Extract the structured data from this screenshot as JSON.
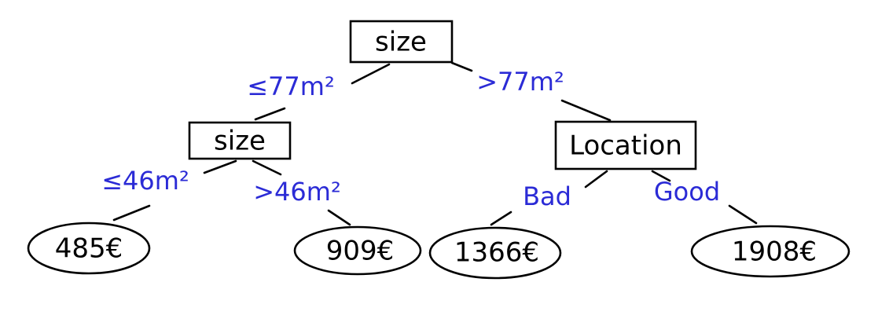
{
  "colors": {
    "ink": "#000000",
    "label": "#2b2bd6",
    "background": "#ffffff"
  },
  "tree": {
    "root": {
      "label": "size"
    },
    "left_node": {
      "label": "size"
    },
    "right_node": {
      "label": "Location"
    },
    "edges": {
      "root_left": "≤77m²",
      "root_right": ">77m²",
      "left_left": "≤46m²",
      "left_right": ">46m²",
      "right_left": "Bad",
      "right_right": "Good"
    },
    "leaves": {
      "leaf1": "485€",
      "leaf2": "909€",
      "leaf3": "1366€",
      "leaf4": "1908€"
    }
  }
}
